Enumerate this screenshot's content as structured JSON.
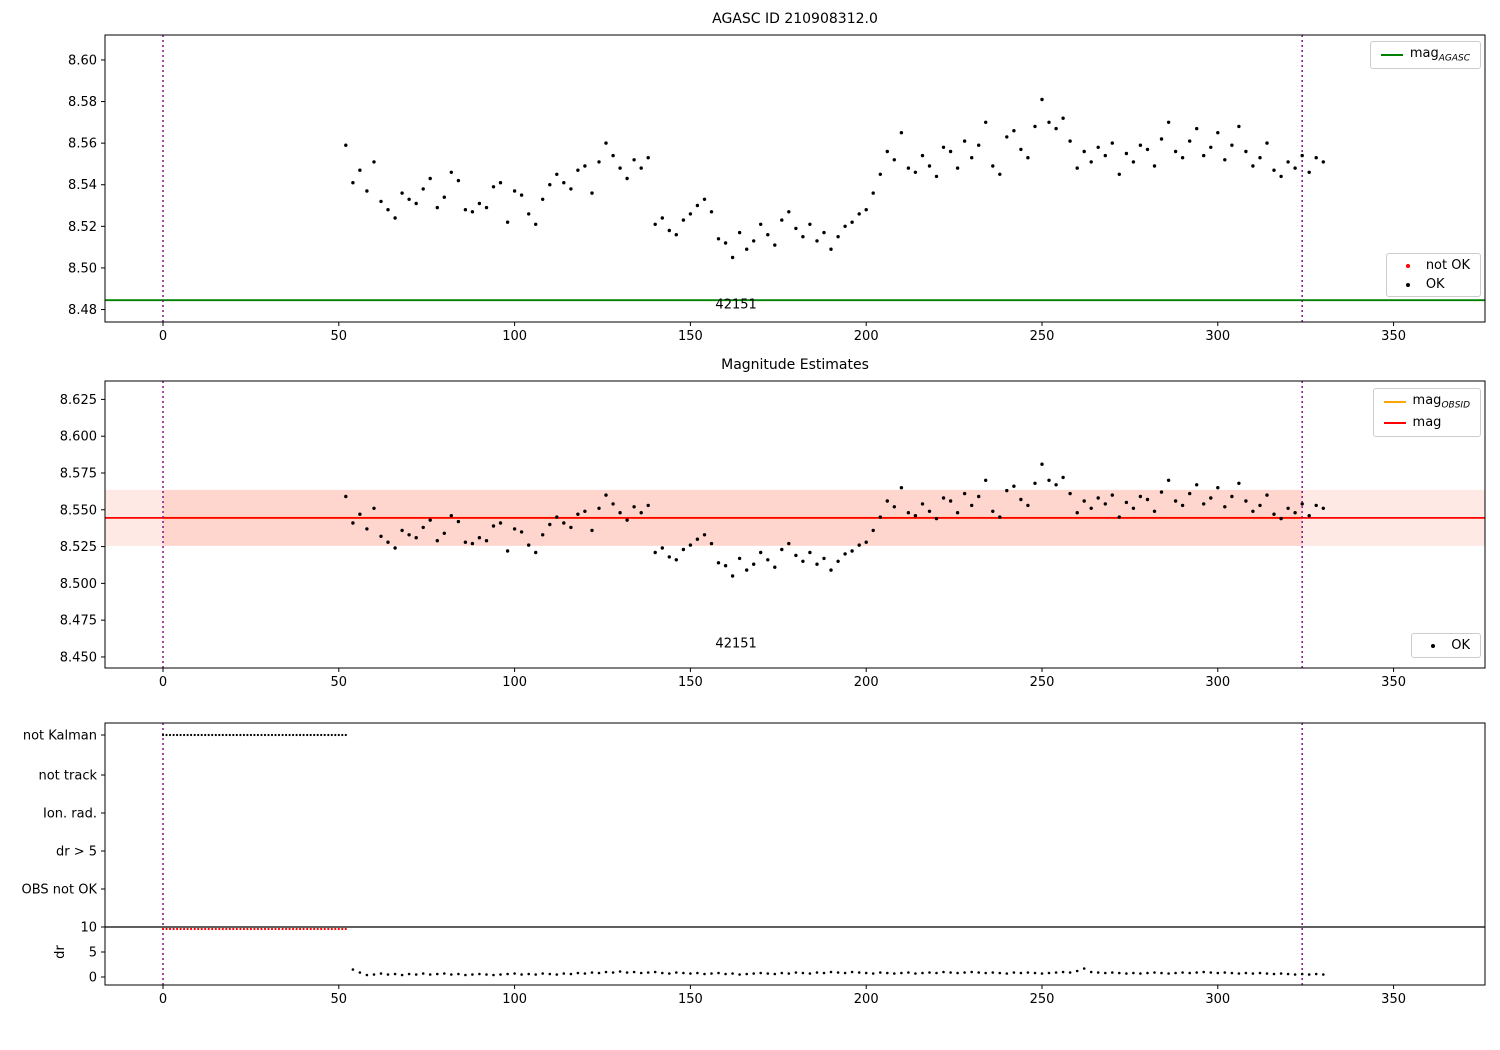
{
  "colors": {
    "ok": "#000000",
    "not_ok": "#ff0000",
    "agasc": "#008000",
    "mag": "#ff0000",
    "obsid": "#ffa500",
    "vline": "#800080",
    "band": "#ff6347",
    "frame": "#000000",
    "text": "#000000"
  },
  "chart_data": {
    "mag_scatter": {
      "type": "scatter",
      "x": [
        52,
        54,
        56,
        58,
        60,
        62,
        64,
        66,
        68,
        70,
        72,
        74,
        76,
        78,
        80,
        82,
        84,
        86,
        88,
        90,
        92,
        94,
        96,
        98,
        100,
        102,
        104,
        106,
        108,
        110,
        112,
        114,
        116,
        118,
        120,
        122,
        124,
        126,
        128,
        130,
        132,
        134,
        136,
        138,
        140,
        142,
        144,
        146,
        148,
        150,
        152,
        154,
        156,
        158,
        160,
        162,
        164,
        166,
        168,
        170,
        172,
        174,
        176,
        178,
        180,
        182,
        184,
        186,
        188,
        190,
        192,
        194,
        196,
        198,
        200,
        202,
        204,
        206,
        208,
        210,
        212,
        214,
        216,
        218,
        220,
        222,
        224,
        226,
        228,
        230,
        232,
        234,
        236,
        238,
        240,
        242,
        244,
        246,
        248,
        250,
        252,
        254,
        256,
        258,
        260,
        262,
        264,
        266,
        268,
        270,
        272,
        274,
        276,
        278,
        280,
        282,
        284,
        286,
        288,
        290,
        292,
        294,
        296,
        298,
        300,
        302,
        304,
        306,
        308,
        310,
        312,
        314,
        316,
        318,
        320,
        322,
        324,
        326,
        328,
        330
      ],
      "y": [
        8.559,
        8.541,
        8.547,
        8.537,
        8.551,
        8.532,
        8.528,
        8.524,
        8.536,
        8.533,
        8.531,
        8.538,
        8.543,
        8.529,
        8.534,
        8.546,
        8.542,
        8.528,
        8.527,
        8.531,
        8.529,
        8.539,
        8.541,
        8.522,
        8.537,
        8.535,
        8.526,
        8.521,
        8.533,
        8.54,
        8.545,
        8.541,
        8.538,
        8.547,
        8.549,
        8.536,
        8.551,
        8.56,
        8.554,
        8.548,
        8.543,
        8.552,
        8.548,
        8.553,
        8.521,
        8.524,
        8.518,
        8.516,
        8.523,
        8.526,
        8.53,
        8.533,
        8.527,
        8.514,
        8.512,
        8.505,
        8.517,
        8.509,
        8.513,
        8.521,
        8.516,
        8.511,
        8.523,
        8.527,
        8.519,
        8.515,
        8.521,
        8.513,
        8.517,
        8.509,
        8.515,
        8.52,
        8.522,
        8.526,
        8.528,
        8.536,
        8.545,
        8.556,
        8.552,
        8.565,
        8.548,
        8.546,
        8.554,
        8.549,
        8.544,
        8.558,
        8.556,
        8.548,
        8.561,
        8.553,
        8.559,
        8.57,
        8.549,
        8.545,
        8.563,
        8.566,
        8.557,
        8.553,
        8.568,
        8.581,
        8.57,
        8.567,
        8.572,
        8.561,
        8.548,
        8.556,
        8.551,
        8.558,
        8.554,
        8.56,
        8.545,
        8.555,
        8.551,
        8.559,
        8.557,
        8.549,
        8.562,
        8.57,
        8.556,
        8.553,
        8.561,
        8.567,
        8.554,
        8.558,
        8.565,
        8.552,
        8.559,
        8.568,
        8.556,
        8.549,
        8.553,
        8.56,
        8.547,
        8.544,
        8.551,
        8.548,
        8.554,
        8.546,
        8.553,
        8.551
      ]
    },
    "plots": [
      {
        "id": "agasc",
        "type": "scatter",
        "title": "AGASC ID 210908312.0",
        "xlim": [
          -16.5,
          376
        ],
        "ylim": [
          8.474,
          8.612
        ],
        "xticks": [
          0,
          50,
          100,
          150,
          200,
          250,
          300,
          350
        ],
        "xtick_labels": [
          "0",
          "50",
          "100",
          "150",
          "200",
          "250",
          "300",
          "350"
        ],
        "yticks": [
          8.48,
          8.5,
          8.52,
          8.54,
          8.56,
          8.58,
          8.6
        ],
        "ytick_labels": [
          "8.48",
          "8.50",
          "8.52",
          "8.54",
          "8.56",
          "8.58",
          "8.60"
        ],
        "agasc_line": 8.4845,
        "vlines": [
          0,
          324
        ],
        "annotation": {
          "text": "42151",
          "x": 163,
          "y": 8.4805
        },
        "legend_line": {
          "main": "mag",
          "sub": "AGASC"
        },
        "legend_points": [
          {
            "label": "not OK"
          },
          {
            "label": "OK"
          }
        ]
      },
      {
        "id": "magnitude-estimates",
        "type": "scatter",
        "title": "Magnitude Estimates",
        "xlim": [
          -16.5,
          376
        ],
        "ylim": [
          8.4425,
          8.6375
        ],
        "xticks": [
          0,
          50,
          100,
          150,
          200,
          250,
          300,
          350
        ],
        "xtick_labels": [
          "0",
          "50",
          "100",
          "150",
          "200",
          "250",
          "300",
          "350"
        ],
        "yticks": [
          8.45,
          8.475,
          8.5,
          8.525,
          8.55,
          8.575,
          8.6,
          8.625
        ],
        "ytick_labels": [
          "8.450",
          "8.475",
          "8.500",
          "8.525",
          "8.550",
          "8.575",
          "8.600",
          "8.625"
        ],
        "mag_line": 8.5445,
        "obsid_line": 8.5445,
        "band": [
          8.5255,
          8.5635
        ],
        "vlines": [
          0,
          324
        ],
        "annotation": {
          "text": "42151",
          "x": 163,
          "y": 8.4565
        },
        "legend_lines": [
          {
            "main": "mag",
            "sub": "OBSID"
          },
          {
            "main": "mag",
            "sub": ""
          }
        ],
        "legend_points": [
          {
            "label": "OK"
          }
        ]
      },
      {
        "id": "flags",
        "type": "scatter",
        "xlim": [
          -16.5,
          376
        ],
        "xticks": [
          0,
          50,
          100,
          150,
          200,
          250,
          300,
          350
        ],
        "xtick_labels": [
          "0",
          "50",
          "100",
          "150",
          "200",
          "250",
          "300",
          "350"
        ],
        "categories": [
          "not Kalman",
          "not track",
          "Ion. rad.",
          "dr > 5",
          "OBS not OK"
        ],
        "dr_ticks": [
          10,
          5,
          0
        ],
        "dr_tick_labels": [
          "10",
          "5",
          "0"
        ],
        "dr_axis_label": "dr",
        "dr_hline": 10,
        "vlines": [
          0,
          324
        ],
        "not_kalman_x": [
          0,
          1,
          2,
          3,
          4,
          5,
          6,
          7,
          8,
          9,
          10,
          11,
          12,
          13,
          14,
          15,
          16,
          17,
          18,
          19,
          20,
          21,
          22,
          23,
          24,
          25,
          26,
          27,
          28,
          29,
          30,
          31,
          32,
          33,
          34,
          35,
          36,
          37,
          38,
          39,
          40,
          41,
          42,
          43,
          44,
          45,
          46,
          47,
          48,
          49,
          50,
          51,
          52
        ],
        "dr_red": {
          "x": [
            0,
            1,
            2,
            3,
            4,
            5,
            6,
            7,
            8,
            9,
            10,
            11,
            12,
            13,
            14,
            15,
            16,
            17,
            18,
            19,
            20,
            21,
            22,
            23,
            24,
            25,
            26,
            27,
            28,
            29,
            30,
            31,
            32,
            33,
            34,
            35,
            36,
            37,
            38,
            39,
            40,
            41,
            42,
            43,
            44,
            45,
            46,
            47,
            48,
            49,
            50,
            51,
            52
          ],
          "y": 9.6
        },
        "dr_points": {
          "x": [
            54,
            56,
            58,
            60,
            62,
            64,
            66,
            68,
            70,
            72,
            74,
            76,
            78,
            80,
            82,
            84,
            86,
            88,
            90,
            92,
            94,
            96,
            98,
            100,
            102,
            104,
            106,
            108,
            110,
            112,
            114,
            116,
            118,
            120,
            122,
            124,
            126,
            128,
            130,
            132,
            134,
            136,
            138,
            140,
            142,
            144,
            146,
            148,
            150,
            152,
            154,
            156,
            158,
            160,
            162,
            164,
            166,
            168,
            170,
            172,
            174,
            176,
            178,
            180,
            182,
            184,
            186,
            188,
            190,
            192,
            194,
            196,
            198,
            200,
            202,
            204,
            206,
            208,
            210,
            212,
            214,
            216,
            218,
            220,
            222,
            224,
            226,
            228,
            230,
            232,
            234,
            236,
            238,
            240,
            242,
            244,
            246,
            248,
            250,
            252,
            254,
            256,
            258,
            260,
            262,
            264,
            266,
            268,
            270,
            272,
            274,
            276,
            278,
            280,
            282,
            284,
            286,
            288,
            290,
            292,
            294,
            296,
            298,
            300,
            302,
            304,
            306,
            308,
            310,
            312,
            314,
            316,
            318,
            320,
            322,
            324,
            326,
            328,
            330
          ],
          "y": [
            1.5,
            0.9,
            0.4,
            0.5,
            0.7,
            0.5,
            0.6,
            0.4,
            0.6,
            0.5,
            0.7,
            0.5,
            0.6,
            0.7,
            0.5,
            0.6,
            0.4,
            0.5,
            0.6,
            0.5,
            0.4,
            0.5,
            0.6,
            0.7,
            0.5,
            0.6,
            0.5,
            0.7,
            0.6,
            0.5,
            0.7,
            0.6,
            0.8,
            0.7,
            0.9,
            0.8,
            1.0,
            0.9,
            1.1,
            0.9,
            1.0,
            0.8,
            0.9,
            1.0,
            0.8,
            0.7,
            0.9,
            0.8,
            0.7,
            0.8,
            0.6,
            0.7,
            0.8,
            0.6,
            0.7,
            0.5,
            0.6,
            0.7,
            0.8,
            0.7,
            0.6,
            0.8,
            0.7,
            0.9,
            0.8,
            0.7,
            0.9,
            0.8,
            1.0,
            0.9,
            0.8,
            1.0,
            0.9,
            0.8,
            0.7,
            0.9,
            0.8,
            0.7,
            0.8,
            0.9,
            0.7,
            0.8,
            0.9,
            0.8,
            1.0,
            0.9,
            0.8,
            0.9,
            1.0,
            0.9,
            0.8,
            0.9,
            0.8,
            0.7,
            0.9,
            0.8,
            0.9,
            0.8,
            0.7,
            0.8,
            0.9,
            1.0,
            0.9,
            1.2,
            1.7,
            1.0,
            0.9,
            0.8,
            0.9,
            0.8,
            0.7,
            0.8,
            0.7,
            0.8,
            0.9,
            0.8,
            0.7,
            0.8,
            0.9,
            0.8,
            0.9,
            1.0,
            0.9,
            0.8,
            0.9,
            0.8,
            0.7,
            0.8,
            0.7,
            0.8,
            0.7,
            0.6,
            0.7,
            0.6,
            0.5,
            0.6,
            0.5,
            0.6,
            0.5
          ]
        }
      }
    ]
  }
}
